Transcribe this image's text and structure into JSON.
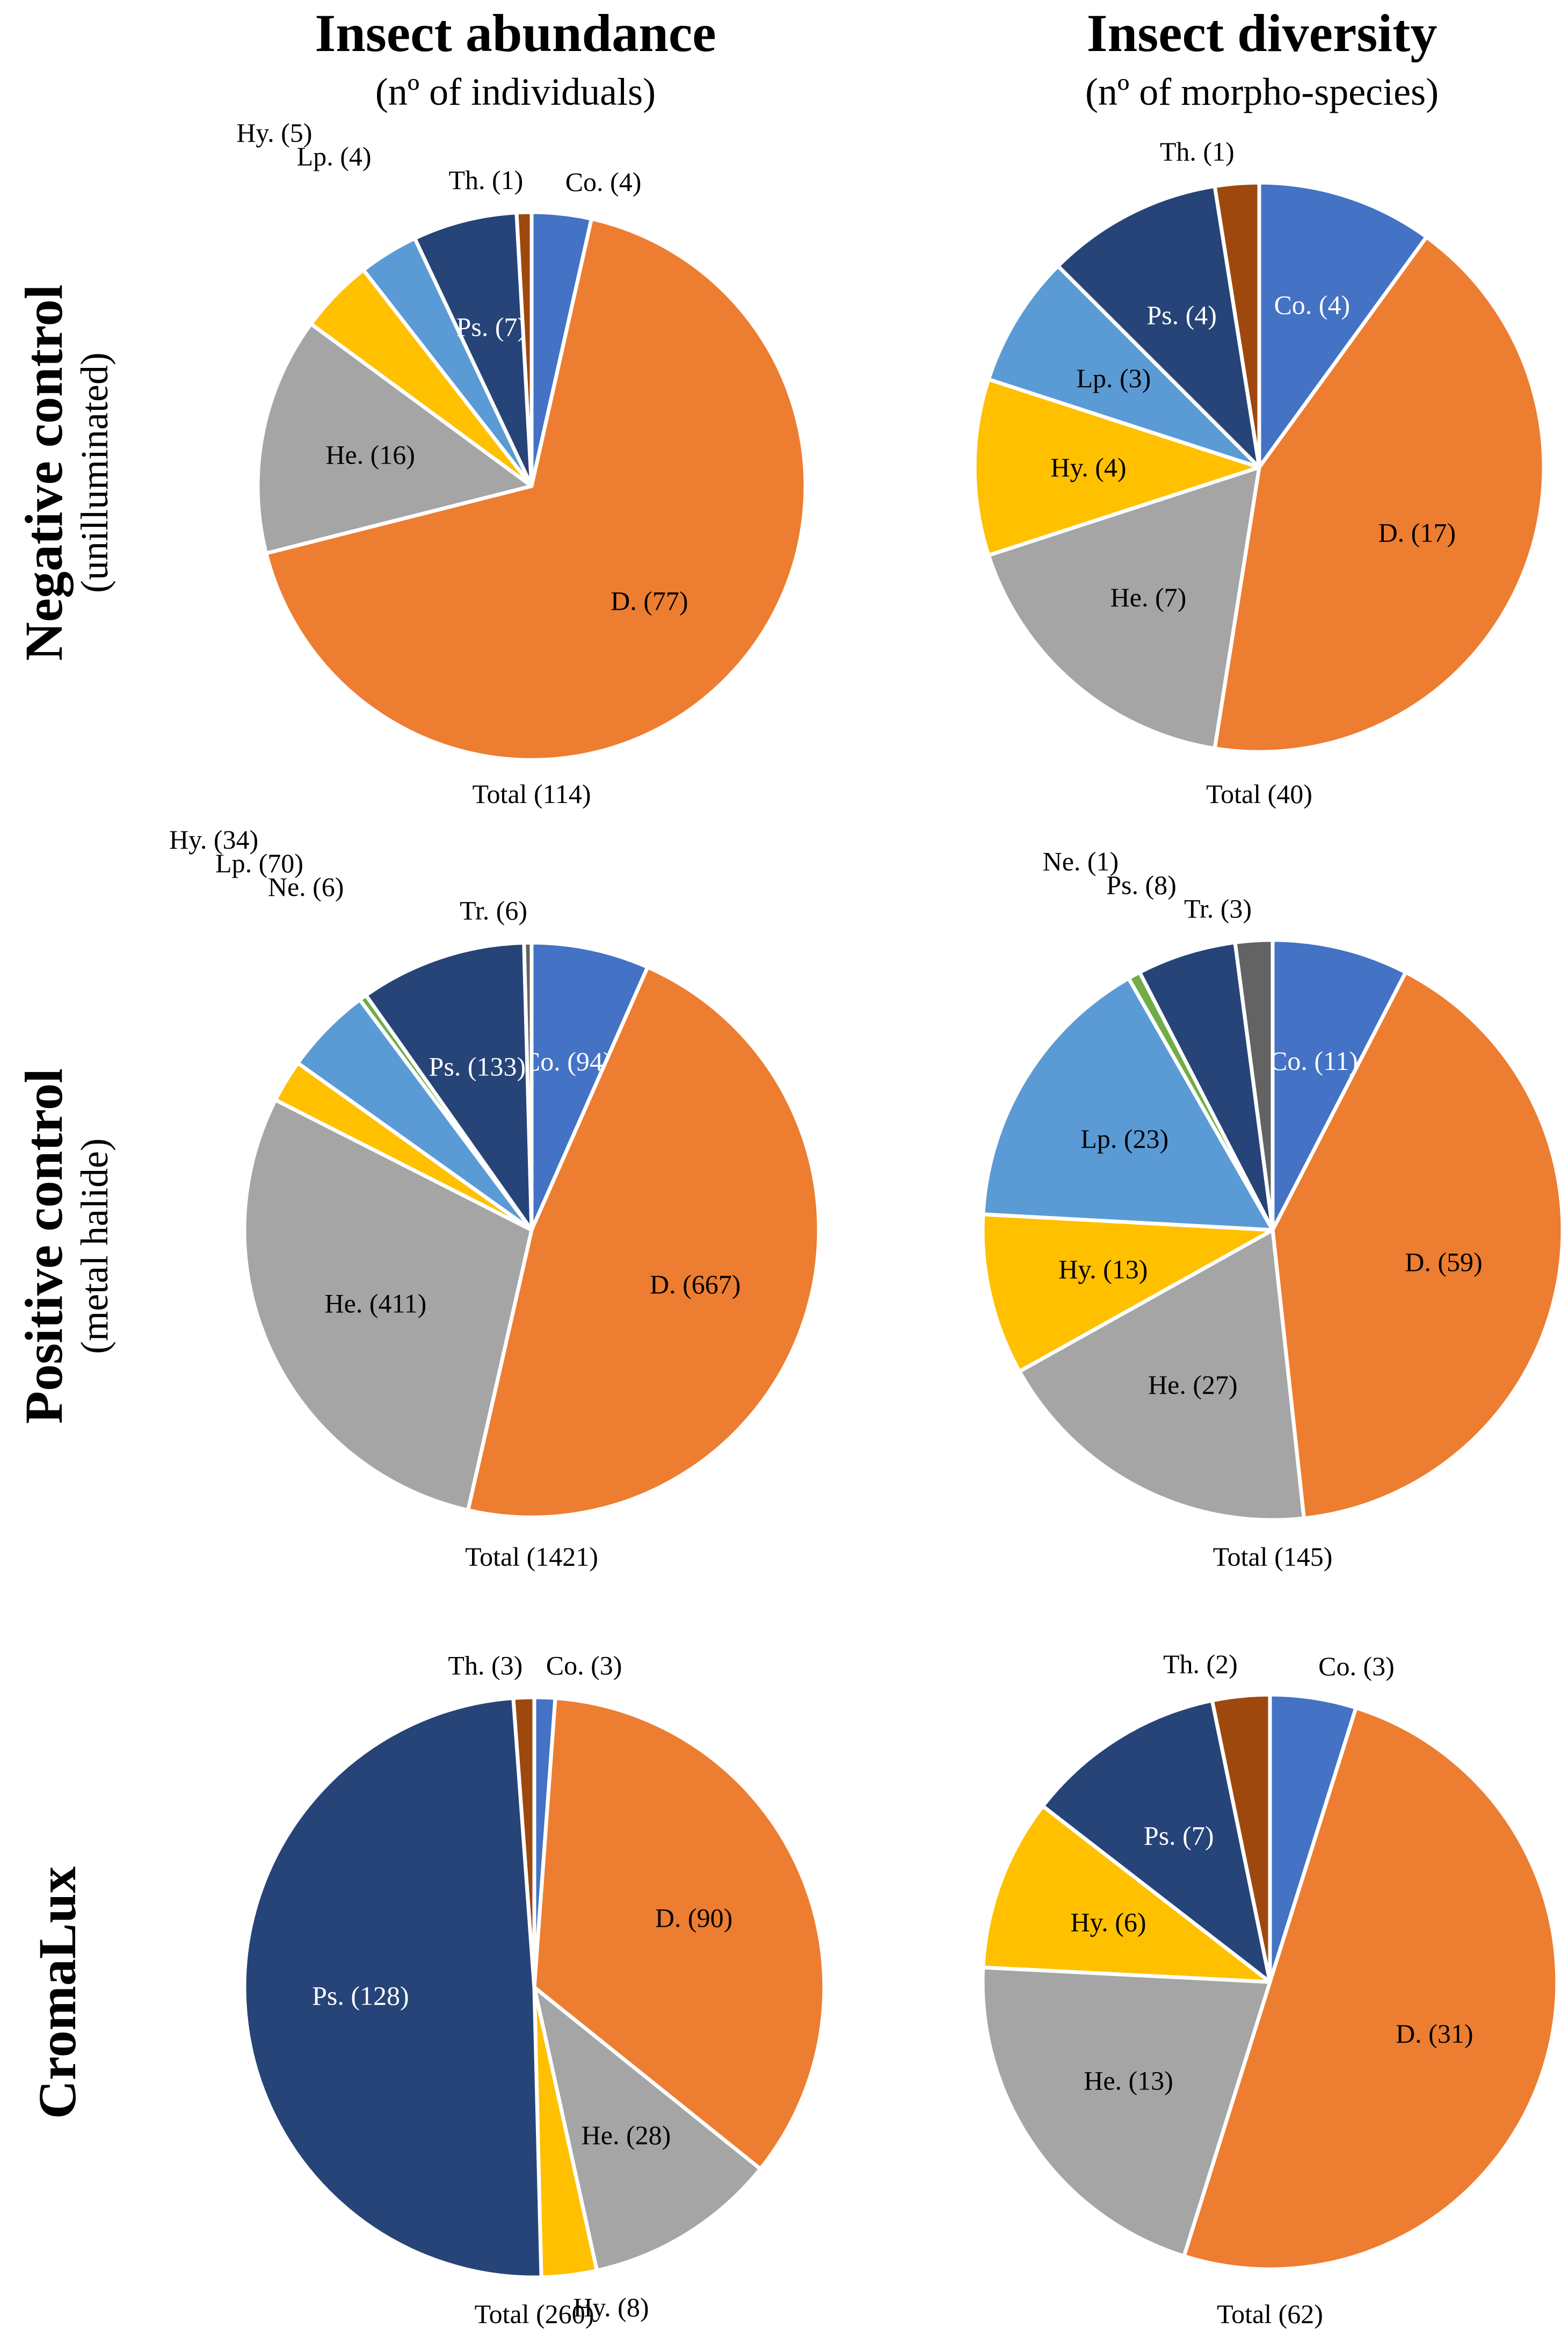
{
  "columns": [
    {
      "title": "Insect abundance",
      "subtitle": "(nº of individuals)"
    },
    {
      "title": "Insect diversity",
      "subtitle": "(nº of morpho-species)"
    }
  ],
  "rows": [
    {
      "title": "Negative control",
      "subtitle": "(unilluminated)"
    },
    {
      "title": "Positive control",
      "subtitle": "(metal halide)"
    },
    {
      "title": "CromaLux",
      "subtitle": ""
    }
  ],
  "colors": {
    "Co.": "#4472C4",
    "D.": "#ED7D31",
    "He.": "#A5A5A5",
    "Hy.": "#FFC000",
    "Lp.": "#5B9BD5",
    "Ne.": "#70AD47",
    "Ps.": "#264478",
    "Th.": "#9E480E",
    "Tr.": "#636363"
  },
  "chart_data": [
    {
      "type": "pie",
      "row": "Negative control",
      "column": "Insect abundance",
      "total_label": "Total (114)",
      "slices": [
        {
          "name": "Co.",
          "value": 4,
          "label": "Co. (4)"
        },
        {
          "name": "D.",
          "value": 77,
          "label": "D. (77)"
        },
        {
          "name": "He.",
          "value": 16,
          "label": "He. (16)"
        },
        {
          "name": "Hy.",
          "value": 5,
          "label": "Hy. (5)"
        },
        {
          "name": "Lp.",
          "value": 4,
          "label": "Lp. (4)"
        },
        {
          "name": "Ps.",
          "value": 7,
          "label": "Ps. (7)"
        },
        {
          "name": "Th.",
          "value": 1,
          "label": "Th. (1)"
        }
      ]
    },
    {
      "type": "pie",
      "row": "Negative control",
      "column": "Insect diversity",
      "total_label": "Total (40)",
      "slices": [
        {
          "name": "Co.",
          "value": 4,
          "label": "Co. (4)"
        },
        {
          "name": "D.",
          "value": 17,
          "label": "D. (17)"
        },
        {
          "name": "He.",
          "value": 7,
          "label": "He. (7)"
        },
        {
          "name": "Hy.",
          "value": 4,
          "label": "Hy. (4)"
        },
        {
          "name": "Lp.",
          "value": 3,
          "label": "Lp. (3)"
        },
        {
          "name": "Ps.",
          "value": 4,
          "label": "Ps. (4)"
        },
        {
          "name": "Th.",
          "value": 1,
          "label": "Th. (1)"
        }
      ]
    },
    {
      "type": "pie",
      "row": "Positive control",
      "column": "Insect abundance",
      "total_label": "Total (1421)",
      "slices": [
        {
          "name": "Co.",
          "value": 94,
          "label": "Co. (94)"
        },
        {
          "name": "D.",
          "value": 667,
          "label": "D. (667)"
        },
        {
          "name": "He.",
          "value": 411,
          "label": "He. (411)"
        },
        {
          "name": "Hy.",
          "value": 34,
          "label": "Hy. (34)"
        },
        {
          "name": "Lp.",
          "value": 70,
          "label": "Lp. (70)"
        },
        {
          "name": "Ne.",
          "value": 6,
          "label": "Ne. (6)"
        },
        {
          "name": "Ps.",
          "value": 133,
          "label": "Ps. (133)"
        },
        {
          "name": "Tr.",
          "value": 6,
          "label": "Tr. (6)"
        }
      ]
    },
    {
      "type": "pie",
      "row": "Positive control",
      "column": "Insect diversity",
      "total_label": "Total (145)",
      "slices": [
        {
          "name": "Co.",
          "value": 11,
          "label": "Co. (11)"
        },
        {
          "name": "D.",
          "value": 59,
          "label": "D. (59)"
        },
        {
          "name": "He.",
          "value": 27,
          "label": "He. (27)"
        },
        {
          "name": "Hy.",
          "value": 13,
          "label": "Hy. (13)"
        },
        {
          "name": "Lp.",
          "value": 23,
          "label": "Lp. (23)"
        },
        {
          "name": "Ne.",
          "value": 1,
          "label": "Ne. (1)"
        },
        {
          "name": "Ps.",
          "value": 8,
          "label": "Ps. (8)"
        },
        {
          "name": "Tr.",
          "value": 3,
          "label": "Tr. (3)"
        }
      ]
    },
    {
      "type": "pie",
      "row": "CromaLux",
      "column": "Insect abundance",
      "total_label": "Total (260)",
      "slices": [
        {
          "name": "Co.",
          "value": 3,
          "label": "Co. (3)"
        },
        {
          "name": "D.",
          "value": 90,
          "label": "D. (90)"
        },
        {
          "name": "He.",
          "value": 28,
          "label": "He. (28)"
        },
        {
          "name": "Hy.",
          "value": 8,
          "label": "Hy. (8)"
        },
        {
          "name": "Ps.",
          "value": 128,
          "label": "Ps. (128)"
        },
        {
          "name": "Th.",
          "value": 3,
          "label": "Th. (3)"
        }
      ]
    },
    {
      "type": "pie",
      "row": "CromaLux",
      "column": "Insect diversity",
      "total_label": "Total (62)",
      "slices": [
        {
          "name": "Co.",
          "value": 3,
          "label": "Co. (3)"
        },
        {
          "name": "D.",
          "value": 31,
          "label": "D. (31)"
        },
        {
          "name": "He.",
          "value": 13,
          "label": "He. (13)"
        },
        {
          "name": "Hy.",
          "value": 6,
          "label": "Hy. (6)"
        },
        {
          "name": "Ps.",
          "value": 7,
          "label": "Ps. (7)"
        },
        {
          "name": "Th.",
          "value": 2,
          "label": "Th. (2)"
        }
      ]
    }
  ]
}
